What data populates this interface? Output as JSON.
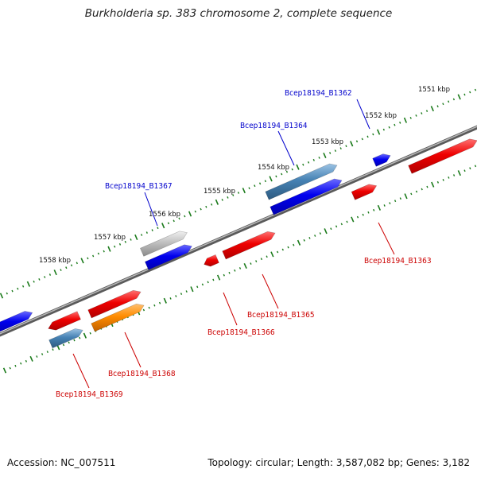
{
  "title": "Burkholderia sp. 383 chromosome 2, complete sequence",
  "footer": {
    "accession": "Accession: NC_007511",
    "summary": "Topology: circular; Length: 3,587,082 bp; Genes: 3,182"
  },
  "colors": {
    "backbone": "#808080",
    "tick": "#1a7a1a",
    "forward_label": "#0000cc",
    "reverse_label": "#cc0000",
    "blue": "#0000ee",
    "red": "#ee0000",
    "steel": "#4682b4",
    "grey": "#b4b4b4",
    "orange": "#ff8c00"
  },
  "scale_labels": [
    {
      "text": "1551 kbp",
      "kbp": 1551
    },
    {
      "text": "1552 kbp",
      "kbp": 1552
    },
    {
      "text": "1553 kbp",
      "kbp": 1553
    },
    {
      "text": "1554 kbp",
      "kbp": 1554
    },
    {
      "text": "1555 kbp",
      "kbp": 1555
    },
    {
      "text": "1556 kbp",
      "kbp": 1556
    },
    {
      "text": "1557 kbp",
      "kbp": 1557
    },
    {
      "text": "1558 kbp",
      "kbp": 1558
    }
  ],
  "gene_labels": [
    {
      "name": "Bcep18194_B1362",
      "strand": "forward"
    },
    {
      "name": "Bcep18194_B1364",
      "strand": "forward"
    },
    {
      "name": "Bcep18194_B1367",
      "strand": "forward"
    },
    {
      "name": "Bcep18194_B1363",
      "strand": "reverse"
    },
    {
      "name": "Bcep18194_B1365",
      "strand": "reverse"
    },
    {
      "name": "Bcep18194_B1366",
      "strand": "reverse"
    },
    {
      "name": "Bcep18194_B1368",
      "strand": "reverse"
    },
    {
      "name": "Bcep18194_B1369",
      "strand": "reverse"
    }
  ]
}
